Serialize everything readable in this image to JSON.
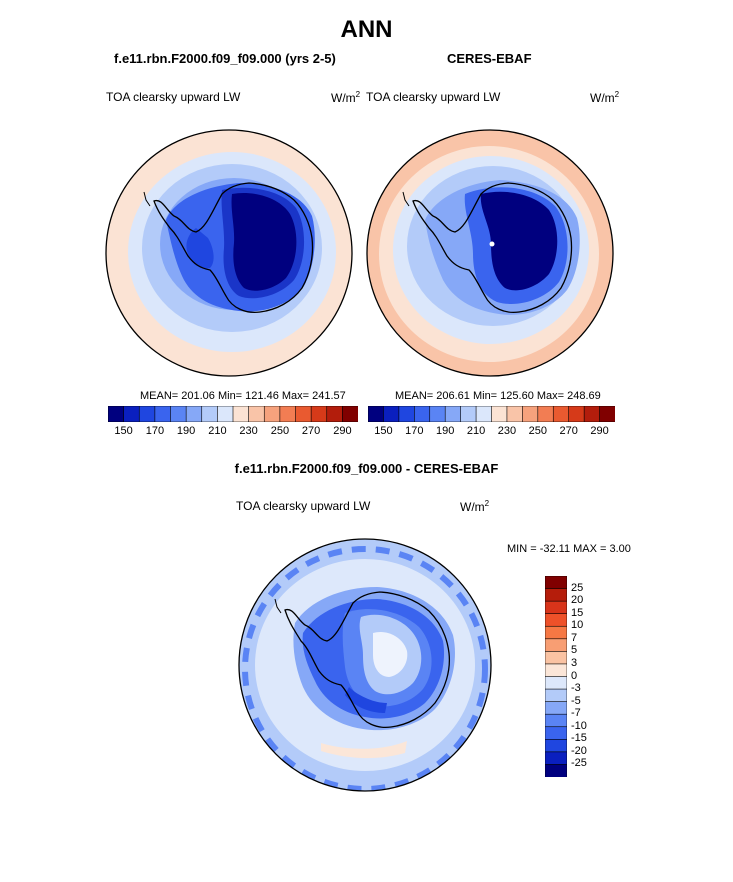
{
  "season_title": "ANN",
  "panels": [
    {
      "case_title": "f.e11.rbn.F2000.f09_f09.000 (yrs 2-5)",
      "variable": "TOA clearsky upward LW",
      "units": "W/m",
      "units_exp": "2",
      "stats_text": "MEAN= 201.06  Min= 121.46  Max= 241.57"
    },
    {
      "case_title": "CERES-EBAF",
      "variable": "TOA clearsky upward LW",
      "units": "W/m",
      "units_exp": "2",
      "stats_text": "MEAN= 206.61  Min= 125.60  Max= 248.69"
    }
  ],
  "diff_panel": {
    "title": "f.e11.rbn.F2000.f09_f09.000 - CERES-EBAF",
    "variable": "TOA clearsky upward LW",
    "units": "W/m",
    "units_exp": "2",
    "minmax_text": "MIN = -32.11 MAX =   3.00"
  },
  "colorbar_abs": {
    "tick_labels": [
      "150",
      "170",
      "190",
      "210",
      "230",
      "250",
      "270",
      "290"
    ],
    "colors": [
      "#00007f",
      "#0a1fbf",
      "#1f46e0",
      "#3a64ee",
      "#5a84f4",
      "#86a8f7",
      "#b3cbf9",
      "#dbe7fb",
      "#fbe3d4",
      "#f9c4a8",
      "#f6a27d",
      "#f27d53",
      "#e95a30",
      "#d63a19",
      "#b31d0c",
      "#800000"
    ]
  },
  "colorbar_diff": {
    "tick_labels": [
      "25",
      "20",
      "15",
      "10",
      "7",
      "5",
      "3",
      "0",
      "-3",
      "-5",
      "-7",
      "-10",
      "-15",
      "-20",
      "-25"
    ],
    "colors": [
      "#800000",
      "#b51d0b",
      "#d8341a",
      "#ee5129",
      "#f67844",
      "#f89e73",
      "#fac3a3",
      "#fbe6d8",
      "#dde8fb",
      "#b3cbf9",
      "#86a8f7",
      "#5a84f4",
      "#3a64ee",
      "#1f46e0",
      "#0a1fbf",
      "#00007f"
    ]
  }
}
